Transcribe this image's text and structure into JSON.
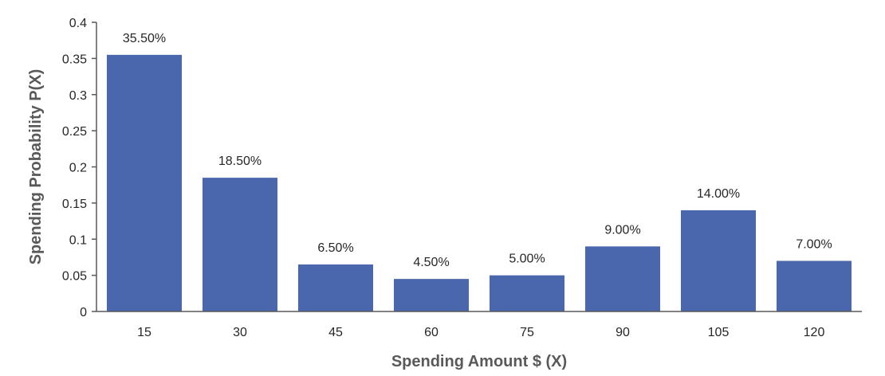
{
  "chart_data": {
    "type": "bar",
    "title": "",
    "xlabel": "Spending Amount $ (X)",
    "ylabel": "Spending Probability P(X)",
    "categories": [
      "15",
      "30",
      "45",
      "60",
      "75",
      "90",
      "105",
      "120"
    ],
    "values": [
      0.355,
      0.185,
      0.065,
      0.045,
      0.05,
      0.09,
      0.14,
      0.07
    ],
    "data_labels": [
      "35.50%",
      "18.50%",
      "6.50%",
      "4.50%",
      "5.00%",
      "9.00%",
      "14.00%",
      "7.00%"
    ],
    "ylim": [
      0,
      0.4
    ],
    "yticks": [
      "0",
      "0.05",
      "0.1",
      "0.15",
      "0.2",
      "0.25",
      "0.3",
      "0.35",
      "0.4"
    ],
    "bar_color": "#4a66ac",
    "axis_color": "#595959",
    "grid": false,
    "legend": "none"
  }
}
